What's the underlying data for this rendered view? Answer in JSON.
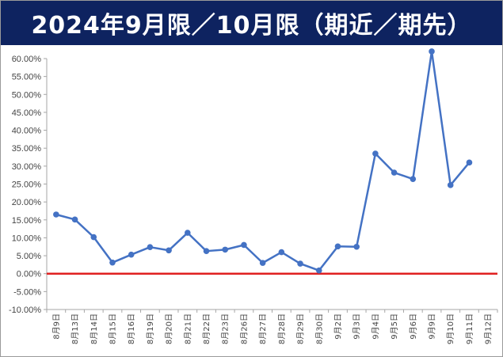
{
  "chart_data": {
    "type": "line",
    "title": "2024年9月限／10月限（期近／期先）",
    "categories": [
      "8月9日",
      "8月13日",
      "8月14日",
      "8月15日",
      "8月16日",
      "8月19日",
      "8月20日",
      "8月21日",
      "8月22日",
      "8月23日",
      "8月26日",
      "8月27日",
      "8月28日",
      "8月29日",
      "8月30日",
      "9月2日",
      "9月3日",
      "9月4日",
      "9月5日",
      "9月6日",
      "9月9日",
      "9月10日",
      "9月11日",
      "9月12日"
    ],
    "series": [
      {
        "values": [
          16.5,
          15.1,
          10.2,
          3.1,
          5.3,
          7.4,
          6.5,
          11.4,
          6.3,
          6.7,
          8.0,
          3.0,
          6.0,
          2.8,
          0.9,
          7.6,
          7.5,
          33.5,
          28.2,
          26.4,
          62.0,
          24.7,
          31.0,
          null
        ]
      }
    ],
    "ylim": [
      -10,
      60
    ],
    "ytick_step": 5,
    "y_format": "percent_2dp",
    "grid": false,
    "reference_line": {
      "value": 0,
      "color": "#e02020"
    },
    "line_color": "#4472c4",
    "title_bg": "#0e2360"
  }
}
